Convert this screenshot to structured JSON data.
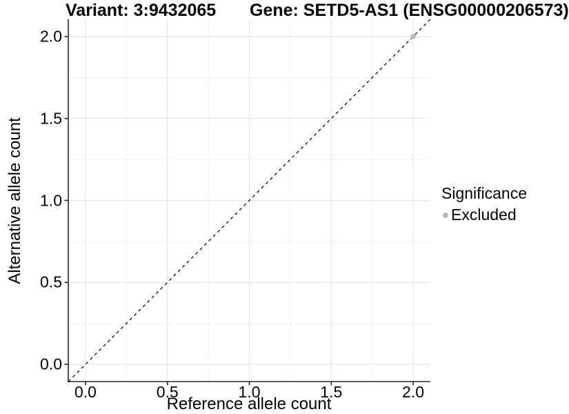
{
  "titles": {
    "variant": "Variant: 3:9432065",
    "gene": "Gene: SETD5-AS1 (ENSG00000206573)"
  },
  "legend": {
    "title": "Significance",
    "items": [
      {
        "label": "Excluded",
        "color": "#b9b9b9"
      }
    ]
  },
  "style": {
    "background": "#ffffff",
    "grid_major_color": "#e3e3e3",
    "grid_minor_color": "#f0f0f0",
    "axis_line_color": "#262626",
    "text_color": "#000000",
    "dashed_line_color": "#1a1a1a",
    "point_color": "#b9b9b9"
  },
  "chart_data": {
    "type": "scatter",
    "title": "Variant: 3:9432065   Gene: SETD5-AS1 (ENSG00000206573)",
    "xlabel": "Reference allele count",
    "ylabel": "Alternative allele count",
    "xlim": [
      -0.105,
      2.105
    ],
    "ylim": [
      -0.105,
      2.105
    ],
    "x_ticks": [
      0.0,
      0.5,
      1.0,
      1.5,
      2.0
    ],
    "y_ticks": [
      0.0,
      0.5,
      1.0,
      1.5,
      2.0
    ],
    "x_minor_ticks": [
      0.25,
      0.75,
      1.25,
      1.75
    ],
    "y_minor_ticks": [
      0.25,
      0.75,
      1.25,
      1.75
    ],
    "tick_label_format_decimals": 1,
    "grid": true,
    "legend_position": "right",
    "legend_title": "Significance",
    "series": [
      {
        "name": "Excluded",
        "type": "scatter",
        "color": "#b9b9b9",
        "points": [
          {
            "x": 2.0,
            "y": 2.0
          }
        ]
      }
    ],
    "reference_line": {
      "kind": "identity",
      "style": "dashed",
      "from": [
        -0.105,
        -0.105
      ],
      "to": [
        2.105,
        2.105
      ],
      "color": "#1a1a1a"
    }
  }
}
